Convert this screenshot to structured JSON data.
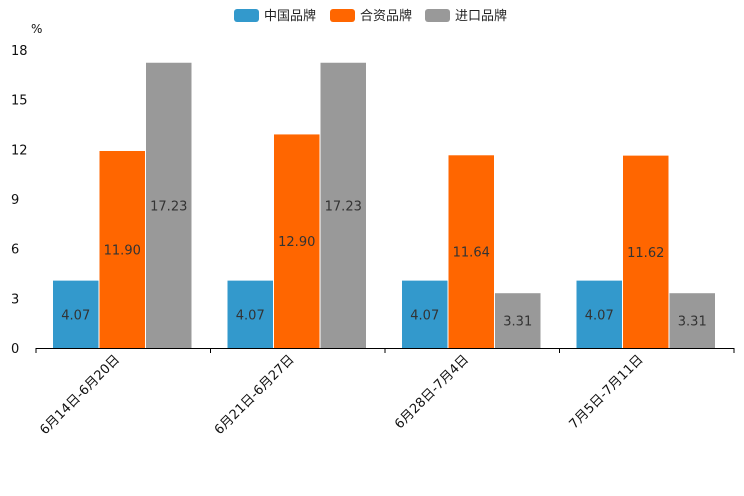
{
  "chart_data": {
    "type": "bar",
    "unit": "%",
    "categories": [
      "6月14日-6月20日",
      "6月21日-6月27日",
      "6月28日-7月4日",
      "7月5日-7月11日"
    ],
    "series": [
      {
        "name": "中国品牌",
        "color": "#3399cc",
        "values": [
          4.07,
          4.07,
          4.07,
          4.07
        ],
        "labels": [
          "4.07",
          "4.07",
          "4.07",
          "4.07"
        ]
      },
      {
        "name": "合资品牌",
        "color": "#ff6600",
        "values": [
          11.9,
          12.9,
          11.64,
          11.62
        ],
        "labels": [
          "11.90",
          "12.90",
          "11.64",
          "11.62"
        ]
      },
      {
        "name": "进口品牌",
        "color": "#999999",
        "values": [
          17.23,
          17.23,
          3.31,
          3.31
        ],
        "labels": [
          "17.23",
          "17.23",
          "3.31",
          "3.31"
        ]
      }
    ],
    "yticks": [
      "0",
      "3",
      "6",
      "9",
      "12",
      "15",
      "18"
    ],
    "ylim": [
      0,
      18
    ],
    "legend_position": "top-center",
    "grid": false
  }
}
